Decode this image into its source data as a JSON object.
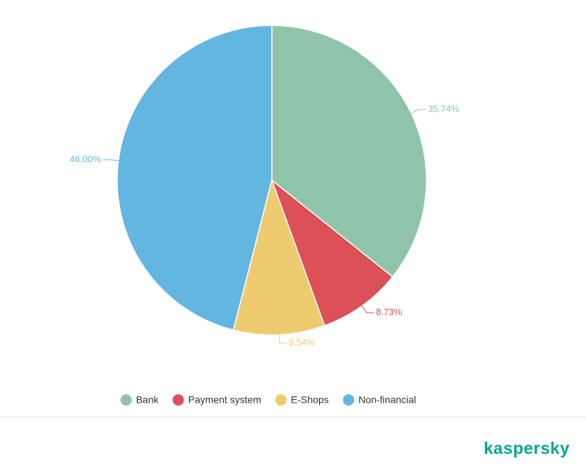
{
  "chart_data": {
    "type": "pie",
    "categories": [
      "Bank",
      "Payment system",
      "E-Shops",
      "Non-financial"
    ],
    "values": [
      35.74,
      8.73,
      9.54,
      46.0
    ],
    "value_labels": [
      "35.74%",
      "8.73%",
      "9.54%",
      "46.00%"
    ],
    "colors": [
      "#8fc4a8",
      "#dc5158",
      "#eecb6e",
      "#62b6e0"
    ],
    "legend": "bottom"
  },
  "brand": "kaspersky"
}
